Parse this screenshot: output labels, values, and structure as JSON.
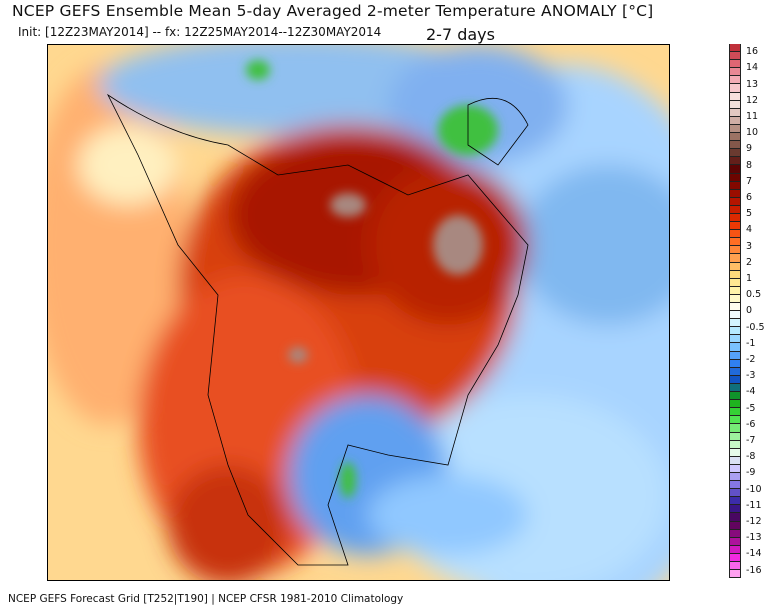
{
  "title": "NCEP GEFS Ensemble Mean 5-day Averaged 2-meter Temperature ANOMALY [°C]",
  "init": "Init: [12Z23MAY2014] -- fx: 12Z25MAY2014--12Z30MAY2014",
  "days": "2-7 days",
  "footer": "NCEP GEFS Forecast Grid [T252|T190] | NCEP CFSR 1981-2010 Climatology",
  "colorbar": {
    "labels": [
      "16",
      "14",
      "13",
      "12",
      "11",
      "10",
      "9",
      "8",
      "7",
      "6",
      "5",
      "4",
      "3",
      "2",
      "1",
      "0.5",
      "0",
      "-0.5",
      "-1",
      "-2",
      "-3",
      "-4",
      "-5",
      "-6",
      "-7",
      "-8",
      "-9",
      "-10",
      "-11",
      "-12",
      "-13",
      "-14",
      "-16"
    ],
    "anchors": [
      "#c0303a",
      "#e06a78",
      "#f6b8c0",
      "#f8ece6",
      "#d8b8b0",
      "#a07868",
      "#6a3a30",
      "#5a0000",
      "#8a0a00",
      "#c01800",
      "#e83000",
      "#ff6a20",
      "#ffa050",
      "#ffe080",
      "#fff8b0",
      "#ffffff",
      "#c0f0ff",
      "#80c8ff",
      "#3080f0",
      "#1050c0",
      "#10a010",
      "#40e040",
      "#90f090",
      "#e8ffe8",
      "#d0c8ff",
      "#8070e0",
      "#3020a0",
      "#500050",
      "#a01090",
      "#f020e0",
      "#ffa0f0"
    ]
  },
  "colors": {
    "warm": "#d84010",
    "hot": "#a81400",
    "mild": "#ff8040",
    "cool": "#80b8f0",
    "cold": "#4080e0",
    "green": "#40c040",
    "brown": "#a88880",
    "sea": "#b8e0ff"
  }
}
